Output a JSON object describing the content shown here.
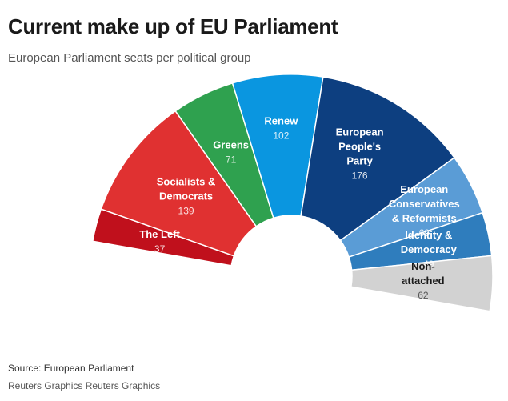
{
  "chart_data": {
    "type": "pie",
    "subtype": "parliament-half-donut",
    "title": "Current make up of EU Parliament",
    "subtitle": "European Parliament seats per political group",
    "series": [
      {
        "name": "The Left",
        "label_lines": [
          "The Left"
        ],
        "value": 37,
        "color": "#c0101c"
      },
      {
        "name": "Socialists & Democrats",
        "label_lines": [
          "Socialists &",
          "Democrats"
        ],
        "value": 139,
        "color": "#e03131"
      },
      {
        "name": "Greens",
        "label_lines": [
          "Greens"
        ],
        "value": 71,
        "color": "#2fa14f"
      },
      {
        "name": "Renew",
        "label_lines": [
          "Renew"
        ],
        "value": 102,
        "color": "#0a96e0"
      },
      {
        "name": "European People's Party",
        "label_lines": [
          "European",
          "People's",
          "Party"
        ],
        "value": 176,
        "color": "#0d3f80"
      },
      {
        "name": "European Conservatives & Reformists",
        "label_lines": [
          "European",
          "Conservatives",
          "& Reformists"
        ],
        "value": 69,
        "color": "#5a9cd6"
      },
      {
        "name": "Identity & Democracy",
        "label_lines": [
          "Identity &",
          "Democracy"
        ],
        "value": 49,
        "color": "#2f7dbd"
      },
      {
        "name": "Non-attached",
        "label_lines": [
          "Non-",
          "attached"
        ],
        "value": 62,
        "color": "#d2d2d2",
        "text_dark": true
      }
    ]
  },
  "footer": {
    "source": "Source: European Parliament",
    "credit": "Reuters Graphics Reuters Graphics"
  }
}
